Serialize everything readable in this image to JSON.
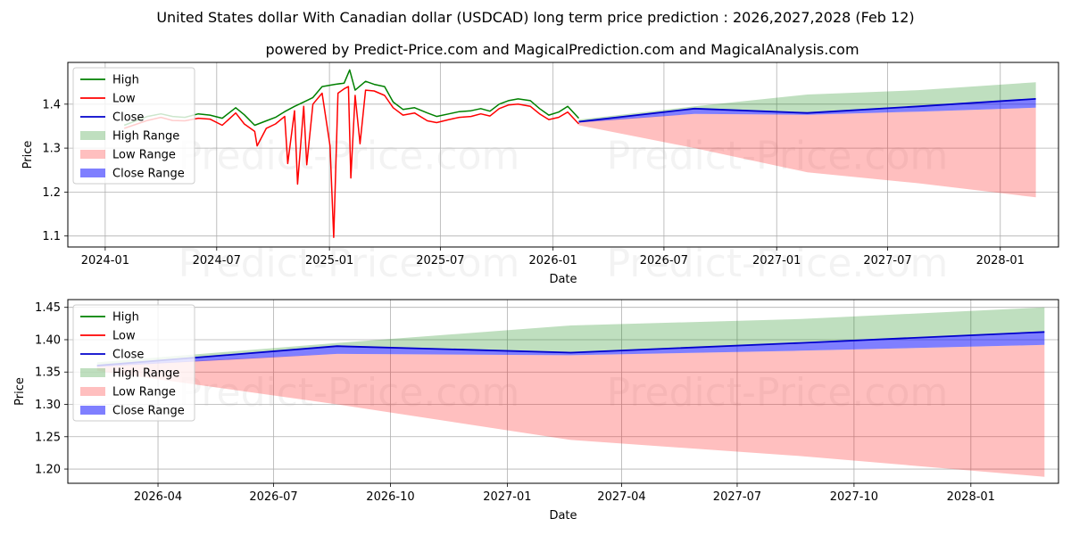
{
  "chart_data": [
    {
      "type": "line",
      "title": "United States dollar With Canadian dollar (USDCAD) long term price prediction : 2026,2027,2028 (Feb 12)",
      "subtitle": "powered by Predict-Price.com and MagicalPrediction.com and MagicalAnalysis.com",
      "watermark": "Predict-Price.com",
      "xlabel": "Date",
      "ylabel": "Price",
      "xlim": [
        "2023-11-01",
        "2028-04-05"
      ],
      "ylim": [
        1.075,
        1.495
      ],
      "xticks": [
        "2024-01",
        "2024-07",
        "2025-01",
        "2025-07",
        "2026-01",
        "2026-07",
        "2027-01",
        "2027-07",
        "2028-01"
      ],
      "yticks": [
        1.1,
        1.2,
        1.3,
        1.4
      ],
      "grid": true,
      "legend": {
        "position": "top-left",
        "entries": [
          "High",
          "Low",
          "Close",
          "High Range",
          "Low Range",
          "Close Range"
        ]
      },
      "series": [
        {
          "name": "High",
          "color": "#008000",
          "points": [
            [
              "2024-02-01",
              1.352
            ],
            [
              "2024-02-20",
              1.362
            ],
            [
              "2024-03-10",
              1.372
            ],
            [
              "2024-04-01",
              1.378
            ],
            [
              "2024-04-20",
              1.372
            ],
            [
              "2024-05-10",
              1.37
            ],
            [
              "2024-06-01",
              1.378
            ],
            [
              "2024-06-20",
              1.375
            ],
            [
              "2024-07-10",
              1.368
            ],
            [
              "2024-08-01",
              1.392
            ],
            [
              "2024-08-15",
              1.376
            ],
            [
              "2024-09-01",
              1.352
            ],
            [
              "2024-09-20",
              1.362
            ],
            [
              "2024-10-05",
              1.37
            ],
            [
              "2024-10-20",
              1.383
            ],
            [
              "2024-11-05",
              1.395
            ],
            [
              "2024-11-20",
              1.405
            ],
            [
              "2024-12-05",
              1.415
            ],
            [
              "2024-12-20",
              1.44
            ],
            [
              "2025-01-10",
              1.445
            ],
            [
              "2025-01-25",
              1.448
            ],
            [
              "2025-02-03",
              1.478
            ],
            [
              "2025-02-12",
              1.432
            ],
            [
              "2025-03-01",
              1.452
            ],
            [
              "2025-03-15",
              1.445
            ],
            [
              "2025-04-01",
              1.44
            ],
            [
              "2025-04-15",
              1.405
            ],
            [
              "2025-05-01",
              1.388
            ],
            [
              "2025-05-20",
              1.392
            ],
            [
              "2025-06-10",
              1.38
            ],
            [
              "2025-06-25",
              1.372
            ],
            [
              "2025-07-15",
              1.378
            ],
            [
              "2025-08-01",
              1.383
            ],
            [
              "2025-08-20",
              1.385
            ],
            [
              "2025-09-05",
              1.39
            ],
            [
              "2025-09-20",
              1.384
            ],
            [
              "2025-10-05",
              1.4
            ],
            [
              "2025-10-20",
              1.408
            ],
            [
              "2025-11-05",
              1.412
            ],
            [
              "2025-11-25",
              1.408
            ],
            [
              "2025-12-10",
              1.39
            ],
            [
              "2025-12-25",
              1.375
            ],
            [
              "2026-01-10",
              1.382
            ],
            [
              "2026-01-25",
              1.395
            ],
            [
              "2026-02-12",
              1.368
            ]
          ]
        },
        {
          "name": "Low",
          "color": "#ff0000",
          "points": [
            [
              "2024-02-01",
              1.345
            ],
            [
              "2024-02-20",
              1.354
            ],
            [
              "2024-03-10",
              1.363
            ],
            [
              "2024-04-01",
              1.37
            ],
            [
              "2024-04-20",
              1.363
            ],
            [
              "2024-05-10",
              1.362
            ],
            [
              "2024-06-01",
              1.368
            ],
            [
              "2024-06-20",
              1.366
            ],
            [
              "2024-07-10",
              1.352
            ],
            [
              "2024-08-01",
              1.38
            ],
            [
              "2024-08-15",
              1.355
            ],
            [
              "2024-09-01",
              1.338
            ],
            [
              "2024-09-05",
              1.305
            ],
            [
              "2024-09-20",
              1.345
            ],
            [
              "2024-10-05",
              1.355
            ],
            [
              "2024-10-20",
              1.372
            ],
            [
              "2024-10-25",
              1.265
            ],
            [
              "2024-11-05",
              1.385
            ],
            [
              "2024-11-10",
              1.218
            ],
            [
              "2024-11-20",
              1.395
            ],
            [
              "2024-11-25",
              1.262
            ],
            [
              "2024-12-05",
              1.4
            ],
            [
              "2024-12-20",
              1.425
            ],
            [
              "2025-01-02",
              1.305
            ],
            [
              "2025-01-08",
              1.097
            ],
            [
              "2025-01-15",
              1.425
            ],
            [
              "2025-01-25",
              1.435
            ],
            [
              "2025-02-01",
              1.44
            ],
            [
              "2025-02-05",
              1.232
            ],
            [
              "2025-02-12",
              1.42
            ],
            [
              "2025-02-20",
              1.31
            ],
            [
              "2025-03-01",
              1.432
            ],
            [
              "2025-03-15",
              1.43
            ],
            [
              "2025-04-01",
              1.42
            ],
            [
              "2025-04-15",
              1.392
            ],
            [
              "2025-05-01",
              1.375
            ],
            [
              "2025-05-20",
              1.38
            ],
            [
              "2025-06-10",
              1.362
            ],
            [
              "2025-06-25",
              1.358
            ],
            [
              "2025-07-15",
              1.365
            ],
            [
              "2025-08-01",
              1.37
            ],
            [
              "2025-08-20",
              1.372
            ],
            [
              "2025-09-05",
              1.378
            ],
            [
              "2025-09-20",
              1.373
            ],
            [
              "2025-10-05",
              1.39
            ],
            [
              "2025-10-20",
              1.398
            ],
            [
              "2025-11-05",
              1.4
            ],
            [
              "2025-11-25",
              1.395
            ],
            [
              "2025-12-10",
              1.378
            ],
            [
              "2025-12-25",
              1.365
            ],
            [
              "2026-01-10",
              1.37
            ],
            [
              "2026-01-25",
              1.382
            ],
            [
              "2026-02-12",
              1.355
            ]
          ]
        },
        {
          "name": "Close",
          "color": "#0000cc",
          "points": [
            [
              "2026-02-12",
              1.36
            ],
            [
              "2026-08-20",
              1.39
            ],
            [
              "2027-02-20",
              1.38
            ],
            [
              "2027-08-20",
              1.395
            ],
            [
              "2028-02-28",
              1.412
            ]
          ]
        }
      ],
      "ranges": [
        {
          "name": "High Range",
          "color": "#008000",
          "opacity": 0.25,
          "upper": [
            [
              "2026-02-12",
              1.365
            ],
            [
              "2026-08-20",
              1.395
            ],
            [
              "2027-02-20",
              1.422
            ],
            [
              "2027-08-20",
              1.432
            ],
            [
              "2028-02-28",
              1.45
            ]
          ],
          "lower": [
            [
              "2026-02-12",
              1.36
            ],
            [
              "2026-08-20",
              1.39
            ],
            [
              "2027-02-20",
              1.38
            ],
            [
              "2027-08-20",
              1.395
            ],
            [
              "2028-02-28",
              1.412
            ]
          ]
        },
        {
          "name": "Low Range",
          "color": "#ff0000",
          "opacity": 0.25,
          "upper": [
            [
              "2026-02-12",
              1.36
            ],
            [
              "2026-08-20",
              1.378
            ],
            [
              "2027-02-20",
              1.376
            ],
            [
              "2027-08-20",
              1.383
            ],
            [
              "2028-02-28",
              1.392
            ]
          ],
          "lower": [
            [
              "2026-02-12",
              1.352
            ],
            [
              "2026-08-20",
              1.3
            ],
            [
              "2027-02-20",
              1.245
            ],
            [
              "2027-08-20",
              1.22
            ],
            [
              "2028-02-28",
              1.188
            ]
          ]
        },
        {
          "name": "Close Range",
          "color": "#0000ff",
          "opacity": 0.5,
          "upper": [
            [
              "2026-02-12",
              1.36
            ],
            [
              "2026-08-20",
              1.39
            ],
            [
              "2027-02-20",
              1.38
            ],
            [
              "2027-08-20",
              1.395
            ],
            [
              "2028-02-28",
              1.412
            ]
          ],
          "lower": [
            [
              "2026-02-12",
              1.358
            ],
            [
              "2026-08-20",
              1.378
            ],
            [
              "2027-02-20",
              1.376
            ],
            [
              "2027-08-20",
              1.383
            ],
            [
              "2028-02-28",
              1.392
            ]
          ]
        }
      ]
    },
    {
      "type": "line",
      "xlabel": "Date",
      "ylabel": "Price",
      "watermark": "Predict-Price.com",
      "xlim": [
        "2026-01-20",
        "2028-03-10"
      ],
      "ylim": [
        1.178,
        1.462
      ],
      "xticks": [
        "2026-04",
        "2026-07",
        "2026-10",
        "2027-01",
        "2027-04",
        "2027-07",
        "2027-10",
        "2028-01"
      ],
      "yticks": [
        "1.20",
        "1.25",
        "1.30",
        "1.35",
        "1.40",
        "1.45"
      ],
      "grid": true,
      "legend": {
        "position": "top-left",
        "entries": [
          "High",
          "Low",
          "Close",
          "High Range",
          "Low Range",
          "Close Range"
        ]
      },
      "series": [
        {
          "name": "Close",
          "color": "#0000cc",
          "points": [
            [
              "2026-02-12",
              1.36
            ],
            [
              "2026-08-20",
              1.39
            ],
            [
              "2027-02-20",
              1.38
            ],
            [
              "2027-08-20",
              1.395
            ],
            [
              "2028-02-28",
              1.412
            ]
          ]
        }
      ],
      "ranges": [
        {
          "name": "High Range",
          "color": "#008000",
          "opacity": 0.25,
          "upper": [
            [
              "2026-02-12",
              1.365
            ],
            [
              "2026-08-20",
              1.395
            ],
            [
              "2027-02-20",
              1.422
            ],
            [
              "2027-08-20",
              1.432
            ],
            [
              "2028-02-28",
              1.45
            ]
          ],
          "lower": [
            [
              "2026-02-12",
              1.36
            ],
            [
              "2026-08-20",
              1.39
            ],
            [
              "2027-02-20",
              1.38
            ],
            [
              "2027-08-20",
              1.395
            ],
            [
              "2028-02-28",
              1.412
            ]
          ]
        },
        {
          "name": "Low Range",
          "color": "#ff0000",
          "opacity": 0.25,
          "upper": [
            [
              "2026-02-12",
              1.36
            ],
            [
              "2026-08-20",
              1.378
            ],
            [
              "2027-02-20",
              1.376
            ],
            [
              "2027-08-20",
              1.383
            ],
            [
              "2028-02-28",
              1.392
            ]
          ],
          "lower": [
            [
              "2026-02-12",
              1.352
            ],
            [
              "2026-08-20",
              1.3
            ],
            [
              "2027-02-20",
              1.245
            ],
            [
              "2027-08-20",
              1.22
            ],
            [
              "2028-02-28",
              1.188
            ]
          ]
        },
        {
          "name": "Close Range",
          "color": "#0000ff",
          "opacity": 0.5,
          "upper": [
            [
              "2026-02-12",
              1.36
            ],
            [
              "2026-08-20",
              1.39
            ],
            [
              "2027-02-20",
              1.38
            ],
            [
              "2027-08-20",
              1.395
            ],
            [
              "2028-02-28",
              1.412
            ]
          ],
          "lower": [
            [
              "2026-02-12",
              1.358
            ],
            [
              "2026-08-20",
              1.378
            ],
            [
              "2027-02-20",
              1.376
            ],
            [
              "2027-08-20",
              1.383
            ],
            [
              "2028-02-28",
              1.392
            ]
          ]
        }
      ]
    }
  ]
}
